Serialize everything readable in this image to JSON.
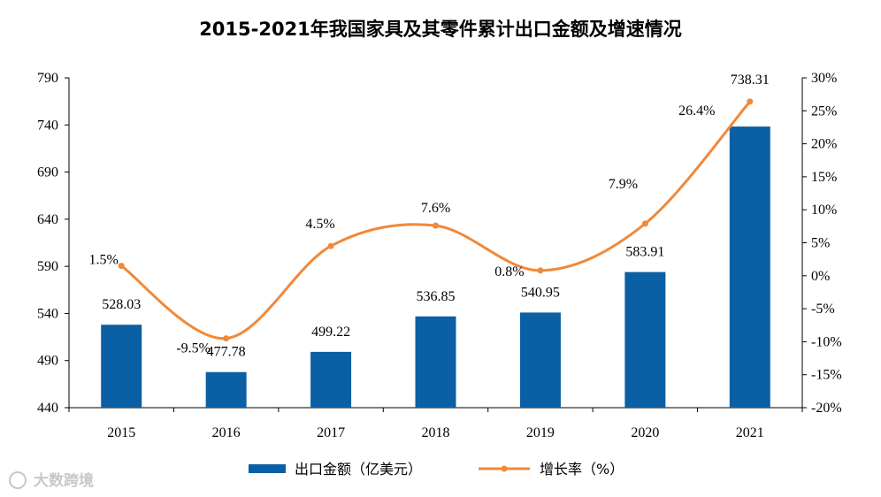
{
  "chart_data": {
    "type": "bar+line",
    "title": "2015-2021年我国家具及其零件累计出口金额及增速情况",
    "categories": [
      "2015",
      "2016",
      "2017",
      "2018",
      "2019",
      "2020",
      "2021"
    ],
    "series": [
      {
        "name": "出口金额（亿美元）",
        "type": "bar",
        "axis": "left",
        "color": "#0b5fa5",
        "values": [
          528.03,
          477.78,
          499.22,
          536.85,
          540.95,
          583.91,
          738.31
        ],
        "labels": [
          "528.03",
          "477.78",
          "499.22",
          "536.85",
          "540.95",
          "583.91",
          "738.31"
        ]
      },
      {
        "name": "增长率（%）",
        "type": "line",
        "axis": "right",
        "color": "#f0893a",
        "values": [
          1.5,
          -9.5,
          4.5,
          7.6,
          0.8,
          7.9,
          26.4
        ],
        "labels": [
          "1.5%",
          "-9.5%",
          "4.5%",
          "7.6%",
          "0.8%",
          "7.9%",
          "26.4%"
        ]
      }
    ],
    "y_left": {
      "range": [
        440,
        790
      ],
      "ticks": [
        "440",
        "490",
        "540",
        "590",
        "640",
        "690",
        "740",
        "790"
      ]
    },
    "y_right": {
      "range": [
        -20,
        30
      ],
      "ticks": [
        "-20%",
        "-15%",
        "-10%",
        "-5%",
        "0%",
        "5%",
        "10%",
        "15%",
        "20%",
        "25%",
        "30%"
      ]
    },
    "legend_position": "bottom"
  },
  "watermark": "大数跨境"
}
